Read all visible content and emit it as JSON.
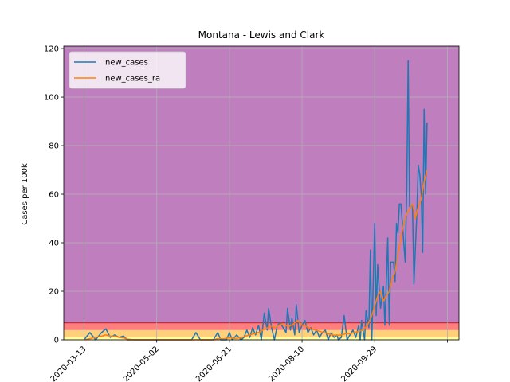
{
  "chart_data": {
    "type": "line",
    "title": "Montana - Lewis and Clark",
    "xlabel": "",
    "ylabel": "Cases per 100k",
    "xlim": [
      "2020-02-28",
      "2020-11-26"
    ],
    "ylim": [
      0,
      121
    ],
    "xticks": [
      "2020-03-13",
      "2020-05-02",
      "2020-06-21",
      "2020-08-10",
      "2020-09-29",
      ""
    ],
    "xtick_dates": [
      "2020-03-13",
      "2020-05-02",
      "2020-06-21",
      "2020-08-10",
      "2020-09-29",
      "2020-11-18"
    ],
    "yticks": [
      0,
      20,
      40,
      60,
      80,
      100,
      120
    ],
    "grid": true,
    "legend_position": "upper-left",
    "bands": [
      {
        "from": 0,
        "to": 1,
        "color": "#ffff9a"
      },
      {
        "from": 1,
        "to": 4,
        "color": "#ffd07a"
      },
      {
        "from": 4,
        "to": 7,
        "color": "#ff7f7f"
      },
      {
        "from": 7,
        "to": 121,
        "color": "#bf7fbf"
      }
    ],
    "band_edge_color": "#d62728",
    "band_edge_value": 7,
    "series": [
      {
        "name": "new_cases",
        "color": "#1f77b4",
        "points": [
          [
            "2020-03-13",
            0
          ],
          [
            "2020-03-17",
            3
          ],
          [
            "2020-03-21",
            0
          ],
          [
            "2020-03-25",
            3
          ],
          [
            "2020-03-28",
            4.5
          ],
          [
            "2020-03-31",
            1
          ],
          [
            "2020-04-03",
            2
          ],
          [
            "2020-04-06",
            1
          ],
          [
            "2020-04-09",
            1.5
          ],
          [
            "2020-04-12",
            0
          ],
          [
            "2020-05-02",
            0
          ],
          [
            "2020-05-26",
            0
          ],
          [
            "2020-05-29",
            3
          ],
          [
            "2020-06-01",
            0
          ],
          [
            "2020-06-10",
            0
          ],
          [
            "2020-06-13",
            3
          ],
          [
            "2020-06-15",
            0
          ],
          [
            "2020-06-19",
            0
          ],
          [
            "2020-06-21",
            3
          ],
          [
            "2020-06-23",
            0
          ],
          [
            "2020-06-26",
            2
          ],
          [
            "2020-06-29",
            0
          ],
          [
            "2020-07-01",
            1
          ],
          [
            "2020-07-03",
            4
          ],
          [
            "2020-07-05",
            1
          ],
          [
            "2020-07-07",
            5
          ],
          [
            "2020-07-09",
            2
          ],
          [
            "2020-07-11",
            6
          ],
          [
            "2020-07-13",
            0
          ],
          [
            "2020-07-15",
            11
          ],
          [
            "2020-07-17",
            4
          ],
          [
            "2020-07-18",
            13
          ],
          [
            "2020-07-20",
            5
          ],
          [
            "2020-07-22",
            0
          ],
          [
            "2020-07-24",
            6
          ],
          [
            "2020-07-26",
            7
          ],
          [
            "2020-07-28",
            5
          ],
          [
            "2020-07-30",
            3
          ],
          [
            "2020-07-31",
            13
          ],
          [
            "2020-08-02",
            4
          ],
          [
            "2020-08-03",
            9
          ],
          [
            "2020-08-05",
            2
          ],
          [
            "2020-08-06",
            14.5
          ],
          [
            "2020-08-08",
            3
          ],
          [
            "2020-08-10",
            6
          ],
          [
            "2020-08-12",
            8
          ],
          [
            "2020-08-14",
            3
          ],
          [
            "2020-08-16",
            5
          ],
          [
            "2020-08-18",
            2
          ],
          [
            "2020-08-20",
            4
          ],
          [
            "2020-08-22",
            1
          ],
          [
            "2020-08-24",
            3
          ],
          [
            "2020-08-26",
            4
          ],
          [
            "2020-08-28",
            0
          ],
          [
            "2020-08-30",
            3
          ],
          [
            "2020-09-01",
            1
          ],
          [
            "2020-09-03",
            2
          ],
          [
            "2020-09-04",
            0
          ],
          [
            "2020-09-06",
            1
          ],
          [
            "2020-09-08",
            10
          ],
          [
            "2020-09-10",
            0
          ],
          [
            "2020-09-12",
            2
          ],
          [
            "2020-09-14",
            4
          ],
          [
            "2020-09-16",
            1
          ],
          [
            "2020-09-18",
            6
          ],
          [
            "2020-09-19",
            0
          ],
          [
            "2020-09-20",
            8
          ],
          [
            "2020-09-22",
            0
          ],
          [
            "2020-09-23",
            12
          ],
          [
            "2020-09-25",
            5
          ],
          [
            "2020-09-26",
            37
          ],
          [
            "2020-09-27",
            0
          ],
          [
            "2020-09-29",
            48
          ],
          [
            "2020-09-30",
            10
          ],
          [
            "2020-10-01",
            31
          ],
          [
            "2020-10-03",
            13
          ],
          [
            "2020-10-05",
            22
          ],
          [
            "2020-10-06",
            6
          ],
          [
            "2020-10-08",
            42
          ],
          [
            "2020-10-09",
            6
          ],
          [
            "2020-10-10",
            32
          ],
          [
            "2020-10-12",
            32
          ],
          [
            "2020-10-13",
            24
          ],
          [
            "2020-10-14",
            48
          ],
          [
            "2020-10-15",
            44
          ],
          [
            "2020-10-16",
            56
          ],
          [
            "2020-10-17",
            56
          ],
          [
            "2020-10-18",
            48
          ],
          [
            "2020-10-20",
            32
          ],
          [
            "2020-10-21",
            62
          ],
          [
            "2020-10-22",
            115
          ],
          [
            "2020-10-23",
            55
          ],
          [
            "2020-10-25",
            55
          ],
          [
            "2020-10-26",
            23
          ],
          [
            "2020-10-27",
            38
          ],
          [
            "2020-10-28",
            52
          ],
          [
            "2020-10-29",
            72
          ],
          [
            "2020-10-30",
            68
          ],
          [
            "2020-10-31",
            60
          ],
          [
            "2020-11-01",
            36
          ],
          [
            "2020-11-02",
            95
          ],
          [
            "2020-11-03",
            60
          ],
          [
            "2020-11-04",
            89.5
          ]
        ]
      },
      {
        "name": "new_cases_ra",
        "color": "#ff7f0e",
        "points": [
          [
            "2020-03-13",
            0
          ],
          [
            "2020-03-17",
            0.5
          ],
          [
            "2020-03-21",
            1
          ],
          [
            "2020-03-25",
            1.5
          ],
          [
            "2020-03-28",
            2
          ],
          [
            "2020-03-31",
            1.5
          ],
          [
            "2020-04-03",
            1.5
          ],
          [
            "2020-04-06",
            1
          ],
          [
            "2020-04-09",
            0.8
          ],
          [
            "2020-04-12",
            0.3
          ],
          [
            "2020-04-16",
            0
          ],
          [
            "2020-06-10",
            0
          ],
          [
            "2020-06-13",
            0.5
          ],
          [
            "2020-06-17",
            0.5
          ],
          [
            "2020-06-21",
            0.8
          ],
          [
            "2020-06-25",
            0.6
          ],
          [
            "2020-06-29",
            0.8
          ],
          [
            "2020-07-02",
            1.5
          ],
          [
            "2020-07-05",
            2
          ],
          [
            "2020-07-08",
            2.5
          ],
          [
            "2020-07-11",
            3
          ],
          [
            "2020-07-14",
            4
          ],
          [
            "2020-07-17",
            5
          ],
          [
            "2020-07-20",
            5.5
          ],
          [
            "2020-07-23",
            5
          ],
          [
            "2020-07-26",
            6.5
          ],
          [
            "2020-07-29",
            6
          ],
          [
            "2020-08-01",
            5.5
          ],
          [
            "2020-08-04",
            6.5
          ],
          [
            "2020-08-07",
            8
          ],
          [
            "2020-08-10",
            6
          ],
          [
            "2020-08-13",
            5.5
          ],
          [
            "2020-08-16",
            4.5
          ],
          [
            "2020-08-19",
            4
          ],
          [
            "2020-08-22",
            3.5
          ],
          [
            "2020-08-25",
            3
          ],
          [
            "2020-08-28",
            2.5
          ],
          [
            "2020-08-31",
            2
          ],
          [
            "2020-09-03",
            1.8
          ],
          [
            "2020-09-06",
            2
          ],
          [
            "2020-09-09",
            2.5
          ],
          [
            "2020-09-12",
            2.5
          ],
          [
            "2020-09-15",
            3
          ],
          [
            "2020-09-18",
            3.5
          ],
          [
            "2020-09-21",
            4
          ],
          [
            "2020-09-24",
            6
          ],
          [
            "2020-09-27",
            10
          ],
          [
            "2020-09-29",
            14
          ],
          [
            "2020-10-01",
            18
          ],
          [
            "2020-10-03",
            20
          ],
          [
            "2020-10-05",
            16
          ],
          [
            "2020-10-07",
            18
          ],
          [
            "2020-10-09",
            20
          ],
          [
            "2020-10-11",
            25
          ],
          [
            "2020-10-13",
            28
          ],
          [
            "2020-10-15",
            35
          ],
          [
            "2020-10-17",
            42
          ],
          [
            "2020-10-19",
            48
          ],
          [
            "2020-10-21",
            52
          ],
          [
            "2020-10-23",
            54
          ],
          [
            "2020-10-25",
            56
          ],
          [
            "2020-10-27",
            50
          ],
          [
            "2020-10-29",
            55
          ],
          [
            "2020-10-31",
            58
          ],
          [
            "2020-11-02",
            65
          ],
          [
            "2020-11-04",
            70
          ]
        ]
      }
    ]
  }
}
